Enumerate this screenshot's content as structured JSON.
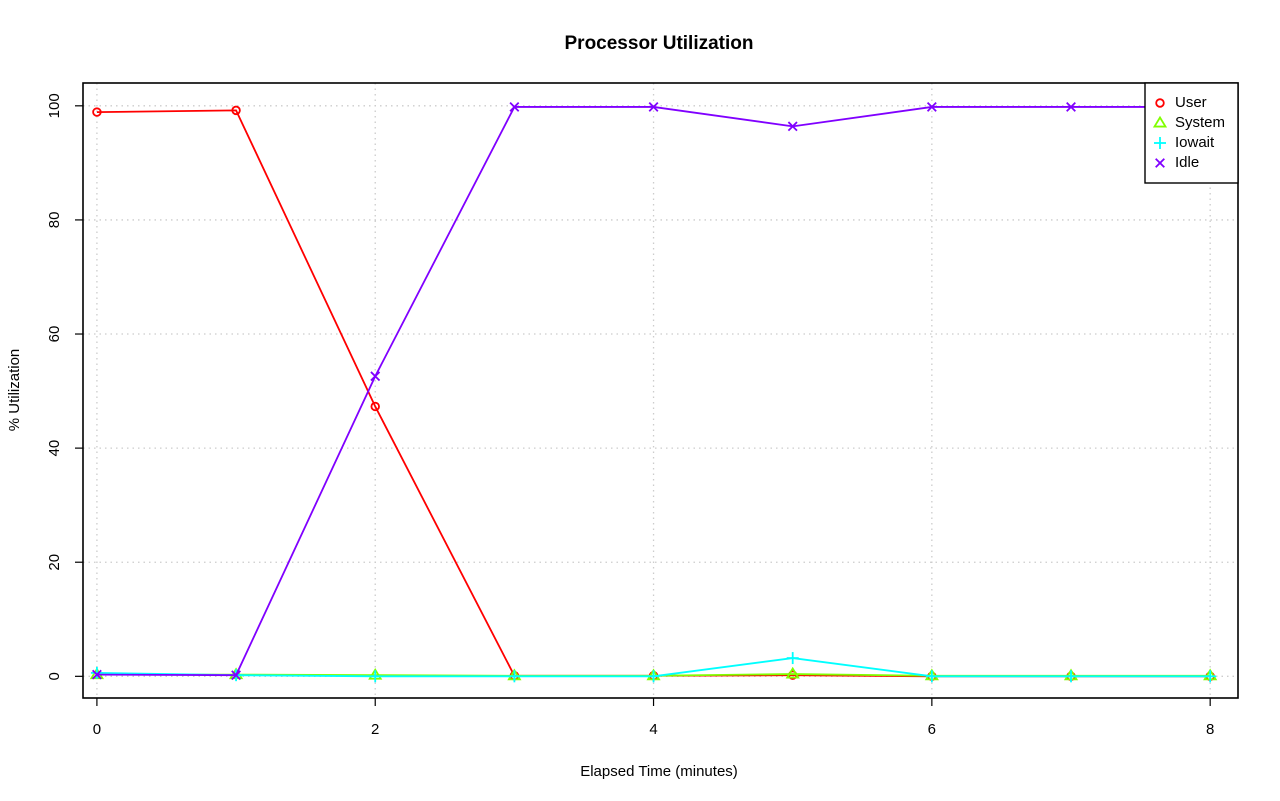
{
  "chart_data": {
    "type": "line",
    "title": "Processor Utilization",
    "xlabel": "Elapsed Time (minutes)",
    "ylabel": "% Utilization",
    "xlim": [
      -0.1,
      8.2
    ],
    "ylim": [
      -3.8,
      104
    ],
    "x_ticks": [
      0,
      2,
      4,
      6,
      8
    ],
    "y_ticks": [
      0,
      20,
      40,
      60,
      80,
      100
    ],
    "grid": true,
    "legend_position": "top-right",
    "x": [
      0,
      1,
      2,
      3,
      4,
      5,
      6,
      7,
      8
    ],
    "series": [
      {
        "name": "User",
        "color": "#ff0000",
        "marker": "circle",
        "values": [
          98.9,
          99.2,
          47.3,
          0.1,
          0.1,
          0.2,
          0.0,
          0.0,
          0.0
        ]
      },
      {
        "name": "System",
        "color": "#80ff00",
        "marker": "triangle",
        "values": [
          0.3,
          0.3,
          0.2,
          0.1,
          0.1,
          0.4,
          0.1,
          0.1,
          0.1
        ]
      },
      {
        "name": "Iowait",
        "color": "#00ffff",
        "marker": "plus",
        "values": [
          0.6,
          0.2,
          0.0,
          0.0,
          0.0,
          3.2,
          0.0,
          0.0,
          0.0
        ]
      },
      {
        "name": "Idle",
        "color": "#8000ff",
        "marker": "cross",
        "values": [
          0.3,
          0.2,
          52.6,
          99.8,
          99.8,
          96.4,
          99.8,
          99.8,
          99.8
        ]
      }
    ]
  }
}
